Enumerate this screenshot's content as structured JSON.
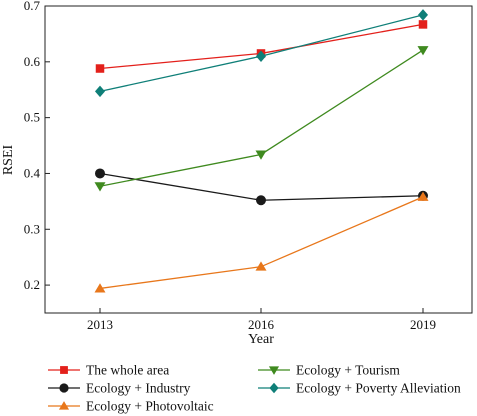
{
  "chart_data": {
    "type": "line",
    "xlabel": "Year",
    "ylabel": "RSEI",
    "categories": [
      "2013",
      "2016",
      "2019"
    ],
    "ylim": [
      0.15,
      0.7
    ],
    "yticks": [
      "0.2",
      "0.3",
      "0.4",
      "0.5",
      "0.6",
      "0.7"
    ],
    "grid": false,
    "legend_position": "bottom",
    "series": [
      {
        "name": "The whole area",
        "values": [
          0.588,
          0.615,
          0.667
        ],
        "color": "#e3201b",
        "marker": "square"
      },
      {
        "name": "Ecology + Industry",
        "values": [
          0.4,
          0.352,
          0.36
        ],
        "color": "#1a1a1a",
        "marker": "circle"
      },
      {
        "name": "Ecology + Photovoltaic",
        "values": [
          0.194,
          0.233,
          0.358
        ],
        "color": "#e8771b",
        "marker": "triangle-up"
      },
      {
        "name": "Ecology + Tourism",
        "values": [
          0.377,
          0.434,
          0.621
        ],
        "color": "#3f8a1f",
        "marker": "triangle-down"
      },
      {
        "name": "Ecology + Poverty Alleviation",
        "values": [
          0.547,
          0.61,
          0.684
        ],
        "color": "#0f7f78",
        "marker": "diamond"
      }
    ]
  }
}
